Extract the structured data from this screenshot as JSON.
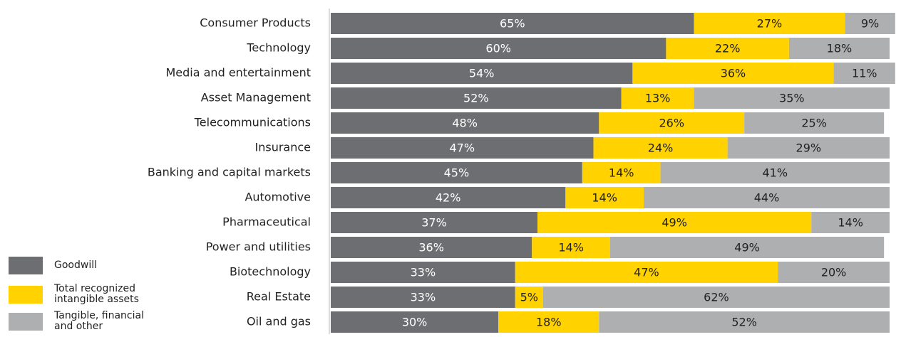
{
  "chart_data": {
    "type": "stacked-barh",
    "categories": [
      "Consumer Products",
      "Technology",
      "Media and entertainment",
      "Asset Management",
      "Telecommunications",
      "Insurance",
      "Banking and capital markets",
      "Automotive",
      "Pharmaceutical",
      "Power and utilities",
      "Biotechnology",
      "Real Estate",
      "Oil and gas"
    ],
    "series": [
      {
        "name": "Goodwill",
        "color": "#6d6e71",
        "label_color": "#ffffff",
        "values": [
          65,
          60,
          54,
          52,
          48,
          47,
          45,
          42,
          37,
          36,
          33,
          33,
          30
        ],
        "value_labels": [
          "65%",
          "60%",
          "54%",
          "52%",
          "48%",
          "47%",
          "45%",
          "42%",
          "37%",
          "36%",
          "33%",
          "33%",
          "30%"
        ]
      },
      {
        "name": "Total recognized intangible assets",
        "color": "#ffd200",
        "label_color": "#222222",
        "values": [
          27,
          22,
          36,
          13,
          26,
          24,
          14,
          14,
          49,
          14,
          47,
          5,
          18
        ],
        "value_labels": [
          "27%",
          "22%",
          "36%",
          "13%",
          "26%",
          "24%",
          "14%",
          "14%",
          "49%",
          "14%",
          "47%",
          "5%",
          "18%"
        ]
      },
      {
        "name": "Tangible, financial and other",
        "color": "#aeafb1",
        "label_color": "#222222",
        "values": [
          9,
          18,
          11,
          35,
          25,
          29,
          41,
          44,
          14,
          49,
          20,
          62,
          52
        ],
        "value_labels": [
          "9%",
          "18%",
          "11%",
          "35%",
          "25%",
          "29%",
          "41%",
          "44%",
          "14%",
          "49%",
          "20%",
          "62%",
          "52%"
        ]
      }
    ],
    "xlim": [
      0,
      100
    ]
  }
}
